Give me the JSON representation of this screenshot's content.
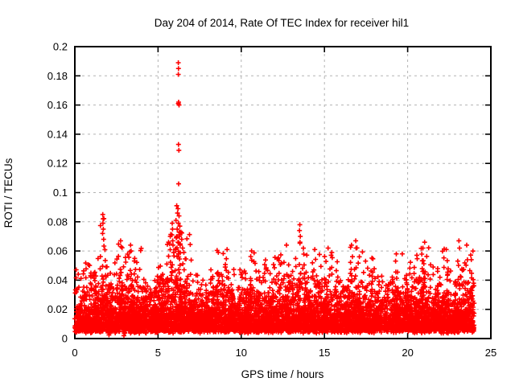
{
  "chart_data": {
    "type": "scatter",
    "title": "Day 204 of 2014, Rate Of TEC Index for receiver hil1",
    "xlabel": "GPS time / hours",
    "ylabel": "ROTI / TECUs",
    "xlim": [
      0,
      25
    ],
    "ylim": [
      0,
      0.2
    ],
    "xticks": [
      {
        "value": 0,
        "label": "0"
      },
      {
        "value": 5,
        "label": "5"
      },
      {
        "value": 10,
        "label": "10"
      },
      {
        "value": 15,
        "label": "15"
      },
      {
        "value": 20,
        "label": "20"
      },
      {
        "value": 25,
        "label": "25"
      }
    ],
    "yticks": [
      {
        "value": 0,
        "label": "0"
      },
      {
        "value": 0.02,
        "label": "0.02"
      },
      {
        "value": 0.04,
        "label": "0.04"
      },
      {
        "value": 0.06,
        "label": "0.06"
      },
      {
        "value": 0.08,
        "label": "0.08"
      },
      {
        "value": 0.1,
        "label": "0.1"
      },
      {
        "value": 0.12,
        "label": "0.12"
      },
      {
        "value": 0.14,
        "label": "0.14"
      },
      {
        "value": 0.16,
        "label": "0.16"
      },
      {
        "value": 0.18,
        "label": "0.18"
      },
      {
        "value": 0.2,
        "label": "0.2"
      }
    ],
    "grid": true,
    "legend": "none",
    "marker": "plus",
    "marker_color": "#ff0000",
    "grid_color": "#b3b3b3",
    "border_color": "#000000",
    "cloud": {
      "comment": "Dense noise band of ROTI values 0-24h; per-0.5h-bin envelope (approx max of contiguous cloud, TECUs) read from plot",
      "seed": 77,
      "bin_hours": 0.5,
      "points_per_bin": 140,
      "x_start": 0,
      "x_end": 24,
      "floor": 0.0035,
      "floor_jitter": 0.003,
      "tail_divisor": 4.8,
      "envelope": [
        0.05,
        0.052,
        0.058,
        0.085,
        0.055,
        0.068,
        0.065,
        0.062,
        0.055,
        0.05,
        0.055,
        0.08,
        0.095,
        0.072,
        0.055,
        0.05,
        0.055,
        0.062,
        0.06,
        0.05,
        0.056,
        0.06,
        0.055,
        0.052,
        0.058,
        0.056,
        0.055,
        0.078,
        0.058,
        0.062,
        0.062,
        0.055,
        0.056,
        0.068,
        0.06,
        0.056,
        0.058,
        0.048,
        0.058,
        0.06,
        0.06,
        0.066,
        0.064,
        0.058,
        0.062,
        0.056,
        0.068,
        0.06
      ],
      "density": [
        1,
        1,
        1,
        1,
        1,
        1,
        1,
        1,
        1,
        1,
        1,
        1,
        1.15,
        1,
        1,
        1,
        1,
        1,
        1,
        1,
        1,
        1,
        1,
        1,
        1,
        1,
        1,
        1,
        1,
        1,
        1,
        1,
        1,
        1,
        1,
        1,
        1,
        0.6,
        1,
        1,
        1,
        1,
        1,
        1,
        1,
        1,
        1,
        1
      ]
    },
    "outliers": [
      [
        6.22,
        0.189
      ],
      [
        6.23,
        0.185
      ],
      [
        6.22,
        0.181
      ],
      [
        6.24,
        0.162
      ],
      [
        6.22,
        0.161
      ],
      [
        6.26,
        0.16
      ],
      [
        6.23,
        0.133
      ],
      [
        6.25,
        0.129
      ],
      [
        6.24,
        0.106
      ],
      [
        6.12,
        0.091
      ],
      [
        6.2,
        0.089
      ],
      [
        6.17,
        0.086
      ],
      [
        6.26,
        0.084
      ],
      [
        6.08,
        0.081
      ],
      [
        6.22,
        0.079
      ],
      [
        6.31,
        0.077
      ],
      [
        6.15,
        0.075
      ],
      [
        6.37,
        0.073
      ],
      [
        6.28,
        0.071
      ],
      [
        6.1,
        0.069
      ],
      [
        6.42,
        0.068
      ],
      [
        6.2,
        0.066
      ],
      [
        6.33,
        0.064
      ],
      [
        6.48,
        0.062
      ],
      [
        6.05,
        0.061
      ],
      [
        6.55,
        0.059
      ],
      [
        1.68,
        0.085
      ],
      [
        1.7,
        0.082
      ],
      [
        1.69,
        0.079
      ],
      [
        1.71,
        0.075
      ],
      [
        1.67,
        0.072
      ],
      [
        1.73,
        0.068
      ],
      [
        5.85,
        0.079
      ],
      [
        5.87,
        0.075
      ],
      [
        5.83,
        0.071
      ],
      [
        5.88,
        0.067
      ],
      [
        5.9,
        0.064
      ],
      [
        13.52,
        0.078
      ],
      [
        13.5,
        0.074
      ],
      [
        13.55,
        0.07
      ],
      [
        13.53,
        0.066
      ],
      [
        2.75,
        0.067
      ],
      [
        2.78,
        0.063
      ],
      [
        3.35,
        0.064
      ],
      [
        3.38,
        0.06
      ],
      [
        8.62,
        0.059
      ],
      [
        9.15,
        0.061
      ],
      [
        10.62,
        0.06
      ],
      [
        12.72,
        0.064
      ],
      [
        14.42,
        0.061
      ],
      [
        15.22,
        0.062
      ],
      [
        16.88,
        0.067
      ],
      [
        16.9,
        0.062
      ],
      [
        19.32,
        0.058
      ],
      [
        20.92,
        0.062
      ],
      [
        21.02,
        0.066
      ],
      [
        22.32,
        0.061
      ],
      [
        23.08,
        0.067
      ],
      [
        23.12,
        0.062
      ],
      [
        23.55,
        0.064
      ],
      [
        2.05,
        0.0025
      ],
      [
        2.07,
        0.004
      ],
      [
        2.95,
        0.002
      ],
      [
        2.97,
        0.0035
      ],
      [
        3.6,
        0.004
      ]
    ]
  }
}
